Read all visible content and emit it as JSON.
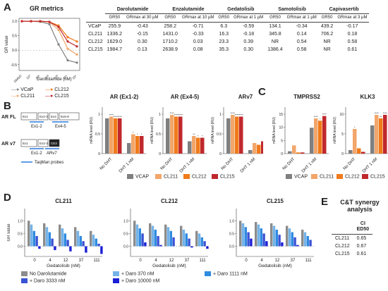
{
  "panels": {
    "A": "A",
    "B": "B",
    "C": "C",
    "D": "D",
    "E": "E"
  },
  "gr_metrics": {
    "title": "GR metrics",
    "xlabel": "Darolutamide (nM)",
    "ylabel": "GR value",
    "legend": [
      "VCaP",
      "CL211",
      "CL212",
      "CL215"
    ],
    "colors": {
      "VCaP": "#7f7f7f",
      "CL211": "#f2a66a",
      "CL212": "#f07a1a",
      "CL215": "#c0282d"
    },
    "xticks": [
      "DMSO",
      "10⁰",
      "10¹",
      "10²",
      "10³",
      "10⁴",
      "10⁵"
    ]
  },
  "table": {
    "drugs": [
      "Darolutamide",
      "Enzalutamide",
      "Gedatolisib",
      "Samotolisib",
      "Capivasertib"
    ],
    "sub": [
      [
        "GR50",
        "GRmax at 30 µM"
      ],
      [
        "GR50",
        "GRmax at 10 µM"
      ],
      [
        "GR50",
        "GRmax at 1 µM"
      ],
      [
        "GR50",
        "GRmax at 1 µM"
      ],
      [
        "GR50",
        "GRmax at 3 µM"
      ]
    ],
    "rows": [
      {
        "name": "VCaP",
        "vals": [
          "255.9",
          "-0.43",
          "258.2",
          "-0.71",
          "6.3",
          "-0.59",
          "134.1",
          "-0.34",
          "439.2",
          "-0.17"
        ]
      },
      {
        "name": "CL211",
        "vals": [
          "1336.2",
          "-0.15",
          "1431.0",
          "-0.33",
          "16.3",
          "-0.18",
          "345.8",
          "0.14",
          "706.2",
          "0.18"
        ]
      },
      {
        "name": "CL212",
        "vals": [
          "1629.0",
          "0.30",
          "1710.2",
          "0.03",
          "23.3",
          "0.39",
          "NR",
          "0.54",
          "NR",
          "0.58"
        ]
      },
      {
        "name": "CL215",
        "vals": [
          "1984.7",
          "0.13",
          "2638.9",
          "0.08",
          "35.3",
          "0.30",
          "1386.4",
          "0.58",
          "NR",
          "0.61"
        ]
      }
    ]
  },
  "schematic": {
    "ar_fl": "AR FL",
    "ar_v7": "AR v7",
    "exons": [
      "Ex1",
      "Ex2-3",
      "Ex4",
      "Ex5-8"
    ],
    "v7_exons": [
      "Ex1",
      "Ex2-3",
      "CE3"
    ],
    "probe_labels": [
      "Ex1-2",
      "Ex4-5",
      "Ex1-2",
      "ARv7"
    ],
    "probes_legend": "TaqMan probes"
  },
  "mrna": {
    "ylabel": "mRNA level (RU)",
    "groups": [
      "No DHT",
      "DHT 1 nM"
    ],
    "legend": [
      "VCAP",
      "CL211",
      "CL212",
      "CL215"
    ],
    "colors": [
      "#7f7f7f",
      "#f2a66a",
      "#f07a1a",
      "#c0282d"
    ],
    "charts": [
      {
        "title": "AR (Ex1-2)",
        "yticks": [
          "1",
          "0.5",
          "0"
        ],
        "ymax": 1.2,
        "brk": true,
        "values": [
          [
            1,
            1.05,
            1.0,
            1.0
          ],
          [
            0.3,
            0.55,
            0.5,
            0.5
          ]
        ],
        "stars": [
          [
            "",
            "****",
            "****",
            "****"
          ],
          [
            "",
            "*",
            "*",
            "*"
          ]
        ]
      },
      {
        "title": "AR (Ex4-5)",
        "yticks": [
          "1",
          "0.5",
          "0"
        ],
        "ymax": 1.2,
        "brk": true,
        "values": [
          [
            1,
            1.1,
            1.05,
            1.05
          ],
          [
            0.35,
            0.5,
            0.45,
            0.45
          ]
        ],
        "stars": [
          [
            "",
            "****",
            "****",
            "****"
          ],
          [
            "",
            "**",
            "*",
            "*"
          ]
        ]
      },
      {
        "title": "ARv7",
        "yticks": [
          "1",
          "0.5",
          "0"
        ],
        "ymax": 1.2,
        "brk": true,
        "values": [
          [
            1,
            1.1,
            1.05,
            1.05
          ],
          [
            0.1,
            0.3,
            0.25,
            0.35
          ]
        ],
        "stars": [
          [
            "",
            "****",
            "****",
            "****"
          ],
          [
            "",
            "",
            "",
            ""
          ]
        ]
      },
      {
        "title": "TMPRSS2",
        "yticks": [
          "15",
          "10",
          "5",
          "0"
        ],
        "ymax": 18,
        "brk": true,
        "values": [
          [
            1,
            3.5,
            0.5,
            0.5
          ],
          [
            11,
            15,
            14,
            16
          ]
        ],
        "stars": [
          [
            "",
            "",
            "",
            ""
          ],
          [
            "",
            "****",
            "*",
            "****"
          ]
        ]
      },
      {
        "title": "KLK3",
        "yticks": [
          "10",
          "5",
          "0"
        ],
        "ymax": 12,
        "brk": true,
        "values": [
          [
            1,
            7,
            1.5,
            0.5
          ],
          [
            8,
            11,
            10,
            11
          ]
        ],
        "stars": [
          [
            "",
            "*",
            "",
            ""
          ],
          [
            "",
            "****",
            "**",
            "****"
          ]
        ]
      }
    ]
  },
  "synergy": {
    "ylabel": "GR value",
    "xlabel": "Gedatolisib (nM)",
    "xticks": [
      "0",
      "4",
      "12",
      "37",
      "111"
    ],
    "yticks": [
      "1.0",
      "0.5",
      "0.0"
    ],
    "legend": [
      "No Darolutamide",
      "+ Daro 370 nM",
      "+ Daro 1111 nM",
      "+ Daro 3333 nM",
      "+ Daro 10000 nM"
    ],
    "colors": [
      "#8c8c8c",
      "#74b3e8",
      "#2f8be0",
      "#3a52d4",
      "#1a1fd6"
    ],
    "charts": [
      {
        "title": "CL211",
        "values": [
          [
            1.0,
            0.9,
            0.85,
            0.75,
            0.6
          ],
          [
            0.85,
            0.75,
            0.7,
            0.6,
            0.45
          ],
          [
            0.6,
            0.55,
            0.5,
            0.4,
            0.3
          ],
          [
            0.4,
            0.3,
            0.25,
            0.2,
            0.1
          ],
          [
            -0.1,
            -0.15,
            -0.2,
            -0.25,
            -0.3
          ]
        ]
      },
      {
        "title": "CL212",
        "values": [
          [
            1.0,
            0.9,
            0.85,
            0.8,
            0.6
          ],
          [
            0.85,
            0.8,
            0.75,
            0.65,
            0.5
          ],
          [
            0.7,
            0.65,
            0.6,
            0.5,
            0.35
          ],
          [
            0.5,
            0.4,
            0.35,
            0.3,
            0.2
          ],
          [
            0.15,
            0.05,
            0.0,
            -0.05,
            -0.1
          ]
        ]
      },
      {
        "title": "CL215",
        "values": [
          [
            1.0,
            0.95,
            0.9,
            0.8,
            0.65
          ],
          [
            0.9,
            0.85,
            0.8,
            0.7,
            0.55
          ],
          [
            0.75,
            0.7,
            0.65,
            0.55,
            0.4
          ],
          [
            0.55,
            0.5,
            0.45,
            0.35,
            0.25
          ],
          [
            0.3,
            0.2,
            0.15,
            0.05,
            0.0
          ]
        ]
      }
    ]
  },
  "ct": {
    "title1": "C&T synergy",
    "title2": "analysis",
    "head1": "CI",
    "head2": "ED50",
    "rows": [
      {
        "name": "CL211",
        "ci": "0.65"
      },
      {
        "name": "CL212",
        "ci": "0.67"
      },
      {
        "name": "CL215",
        "ci": "0.61"
      }
    ]
  }
}
